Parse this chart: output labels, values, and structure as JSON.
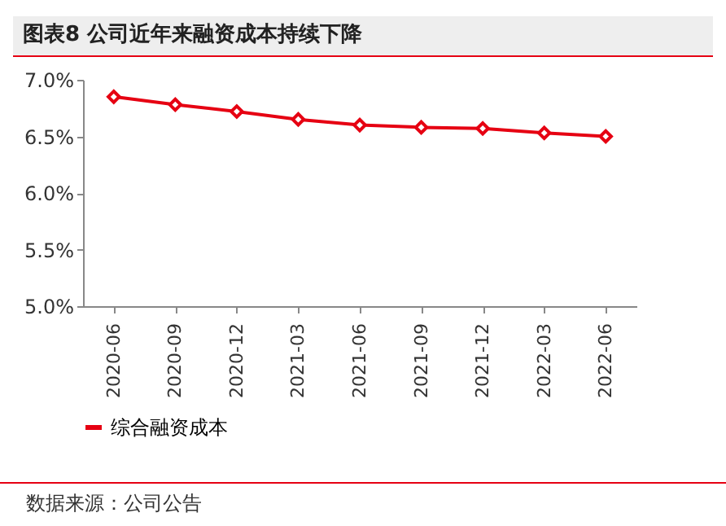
{
  "chart_data": {
    "type": "line",
    "title": "图表8 公司近年来融资成本持续下降",
    "categories": [
      "2020-06",
      "2020-09",
      "2020-12",
      "2021-03",
      "2021-06",
      "2021-09",
      "2021-12",
      "2022-03",
      "2022-06"
    ],
    "series": [
      {
        "name": "综合融资成本",
        "color": "#e60012",
        "values": [
          6.85,
          6.78,
          6.72,
          6.65,
          6.6,
          6.58,
          6.57,
          6.53,
          6.5
        ]
      }
    ],
    "ylim": [
      5.0,
      7.0
    ],
    "yticks": [
      {
        "value": 5.0,
        "label": "5.0%"
      },
      {
        "value": 5.5,
        "label": "5.5%"
      },
      {
        "value": 6.0,
        "label": "6.0%"
      },
      {
        "value": 6.5,
        "label": "6.5%"
      },
      {
        "value": 7.0,
        "label": "7.0%"
      }
    ],
    "marker": "diamond",
    "line_style": "solid",
    "grid": false,
    "legend": "bottom",
    "annotations": [
      "数据来源：公司公告"
    ]
  }
}
